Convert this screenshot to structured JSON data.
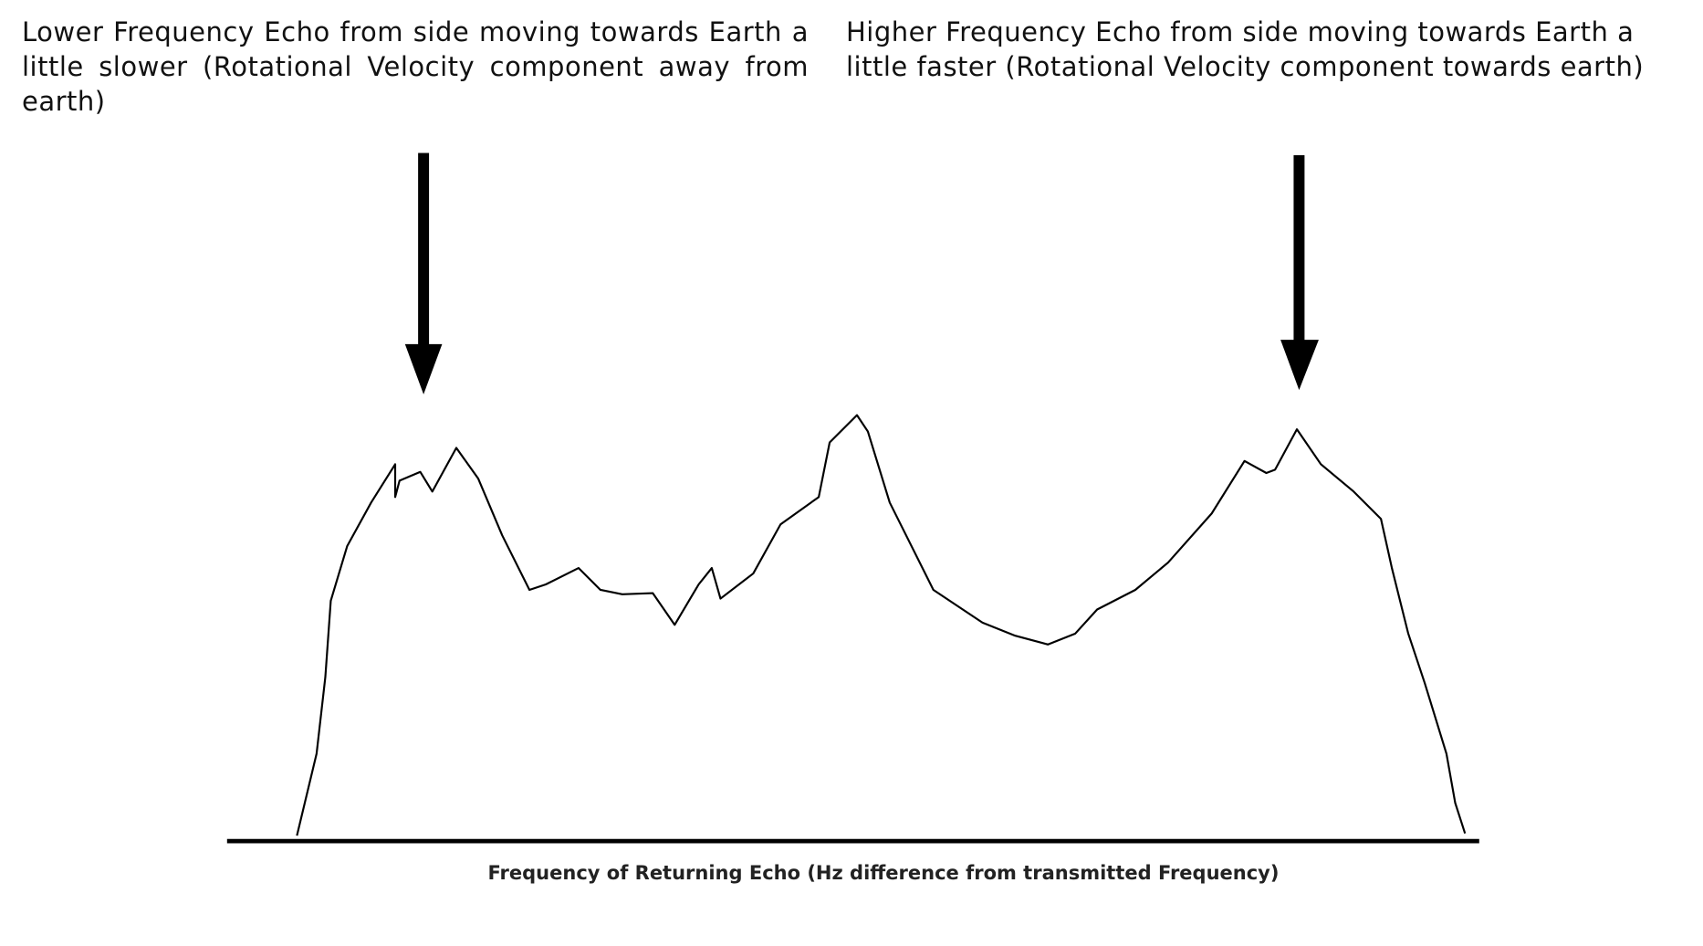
{
  "annotations": {
    "left": "Lower Frequency Echo from side moving towards Earth a little slower (Rotational Velocity component away from earth)",
    "right": "Higher Frequency Echo from side moving towards Earth a little faster (Rotational Velocity component towards earth)"
  },
  "x_axis": {
    "label": "Frequency of Returning Echo (Hz difference from transmitted Frequency)"
  }
}
